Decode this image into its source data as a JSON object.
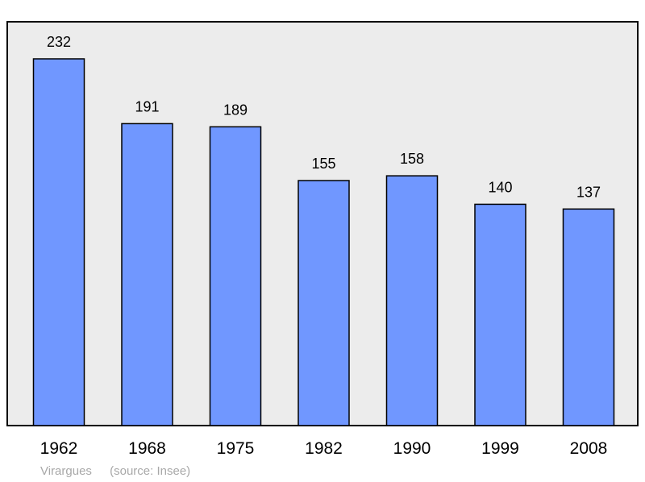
{
  "chart_data": {
    "type": "bar",
    "categories": [
      "1962",
      "1968",
      "1975",
      "1982",
      "1990",
      "1999",
      "2008"
    ],
    "values": [
      232,
      191,
      189,
      155,
      158,
      140,
      137
    ],
    "ylim": [
      0,
      232
    ],
    "grid": false,
    "legend": "none",
    "colors": {
      "bar": "#7097ff",
      "bar_stroke": "#000000",
      "plot_bg": "#ececec"
    }
  },
  "footer": {
    "place": "Virargues",
    "source": "(source: Insee)"
  }
}
